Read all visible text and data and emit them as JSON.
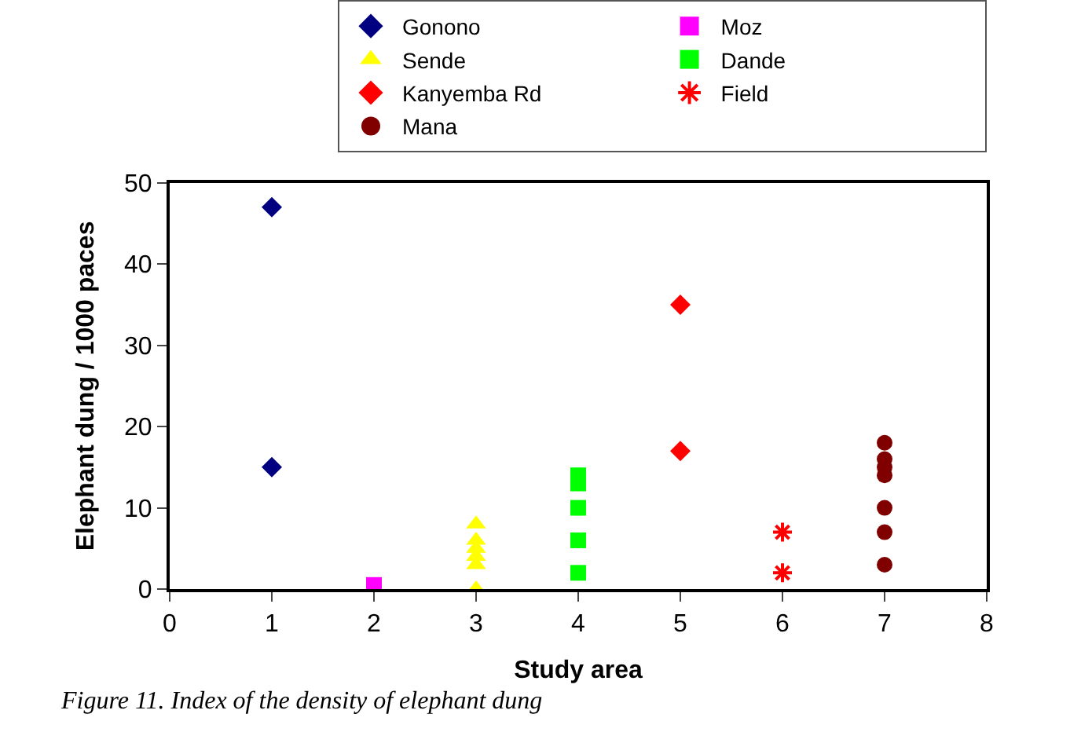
{
  "chart_data": {
    "type": "scatter",
    "xlabel": "Study area",
    "ylabel": "Elephant dung / 1000 paces",
    "xlim": [
      0,
      8
    ],
    "xticks": [
      0,
      1,
      2,
      3,
      4,
      5,
      6,
      7,
      8
    ],
    "ylim": [
      0,
      50
    ],
    "yticks": [
      0,
      10,
      20,
      30,
      40,
      50
    ],
    "grid": false,
    "legend": "top right",
    "annotations": [
      "Figure 11. Index of the density of elephant dung"
    ],
    "series": [
      {
        "name": "Gonono",
        "color": "#000080",
        "marker": "diamond",
        "x": [
          1,
          1
        ],
        "values": [
          47,
          15
        ]
      },
      {
        "name": "Moz",
        "color": "#ff00ff",
        "marker": "square",
        "x": [
          2
        ],
        "values": [
          0.5
        ]
      },
      {
        "name": "Sende",
        "color": "#ffff00",
        "marker": "triangle",
        "x": [
          3,
          3,
          3,
          3,
          3,
          3
        ],
        "values": [
          8,
          6,
          5,
          4,
          3,
          0
        ]
      },
      {
        "name": "Dande",
        "color": "#00ff00",
        "marker": "square",
        "x": [
          4,
          4,
          4,
          4,
          4
        ],
        "values": [
          14,
          13,
          10,
          6,
          2
        ]
      },
      {
        "name": "Kanyemba Rd",
        "color": "#ff0000",
        "marker": "diamond",
        "x": [
          5,
          5
        ],
        "values": [
          35,
          17
        ]
      },
      {
        "name": "Field",
        "color": "#ff0000",
        "marker": "cross",
        "x": [
          6,
          6
        ],
        "values": [
          7,
          2
        ]
      },
      {
        "name": "Mana",
        "color": "#800000",
        "marker": "circle",
        "x": [
          7,
          7,
          7,
          7,
          7,
          7,
          7
        ],
        "values": [
          18,
          16,
          15,
          14,
          10,
          7,
          3
        ]
      }
    ]
  }
}
